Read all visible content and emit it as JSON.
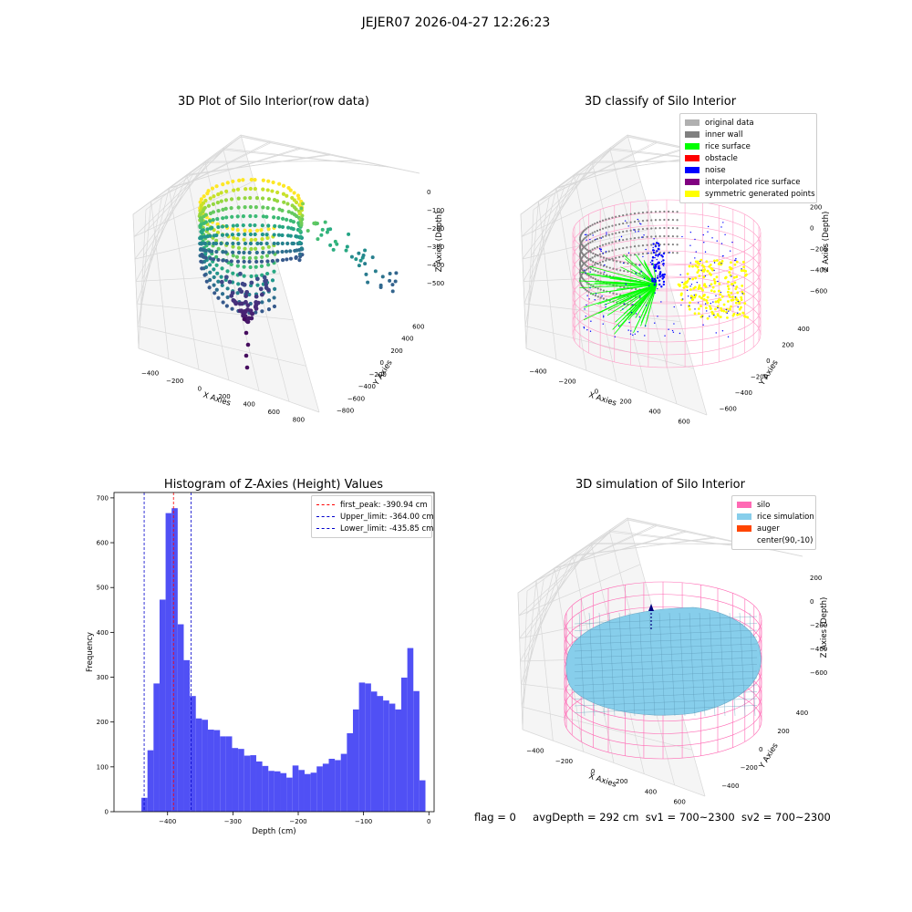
{
  "suptitle": "JEJER07 2026-04-27 12:26:23",
  "status": {
    "flag": "flag = 0",
    "avg": "avgDepth = 292 cm",
    "sv1": "sv1 = 700~2300",
    "sv2": "sv2 = 700~2300"
  },
  "colors": {
    "bar": "#5050f5",
    "peak": "#ff0000",
    "limit": "#0000cc",
    "silo": "#ff69b4",
    "rice": "#87ceeb",
    "auger": "#ff4500",
    "viridis_low": "#440154",
    "viridis_high": "#fde725",
    "green": "#00ff00",
    "yellow": "#ffff00",
    "blue": "#0000ff",
    "gray": "#808080"
  },
  "chart_data": [
    {
      "type": "scatter",
      "title": "3D Plot of Silo Interior(row data)",
      "xlabel": "X Axies",
      "ylabel": "Y Axies",
      "zlabel": "Z Axies (Depth)",
      "x_ticks": [
        "−400",
        "−200",
        "0",
        "200",
        "400",
        "600",
        "800"
      ],
      "y_ticks": [
        "−800",
        "−600",
        "−400",
        "−200",
        "0",
        "200",
        "400",
        "600"
      ],
      "z_ticks": [
        "−500",
        "−400",
        "−300",
        "−200",
        "−100",
        "0"
      ],
      "colormap": "viridis"
    },
    {
      "type": "scatter",
      "title": "3D classify of Silo Interior",
      "xlabel": "X Axies",
      "ylabel": "Y Axies",
      "zlabel": "Z Axies (Depth)",
      "x_ticks": [
        "−400",
        "−200",
        "0",
        "200",
        "400",
        "600"
      ],
      "y_ticks": [
        "−600",
        "−400",
        "−200",
        "0",
        "200",
        "400"
      ],
      "z_ticks": [
        "−600",
        "−400",
        "−200",
        "0",
        "200"
      ],
      "legend": [
        {
          "label": "original data",
          "color": "#b0b0b0"
        },
        {
          "label": "inner wall",
          "color": "#808080"
        },
        {
          "label": "rice surface",
          "color": "#00ff00"
        },
        {
          "label": "obstacle",
          "color": "#ff0000"
        },
        {
          "label": "noise",
          "color": "#0000ff"
        },
        {
          "label": "interpolated rice surface",
          "color": "#800080"
        },
        {
          "label": "symmetric generated points",
          "color": "#ffff00"
        }
      ]
    },
    {
      "type": "bar",
      "title": "Histogram of Z-Axies (Height) Values",
      "xlabel": "Depth (cm)",
      "ylabel": "Frequency",
      "xlim": [
        -482,
        8
      ],
      "ylim": [
        0,
        712
      ],
      "x_ticks": [
        -400,
        -300,
        -200,
        -100,
        0
      ],
      "x_tick_labels": [
        "−400",
        "−300",
        "−200",
        "−100",
        "0"
      ],
      "y_ticks": [
        0,
        100,
        200,
        300,
        400,
        500,
        600,
        700
      ],
      "y_tick_labels": [
        "0",
        "100",
        "200",
        "300",
        "400",
        "500",
        "600",
        "700"
      ],
      "bin_start": -440,
      "bin_width": 9.25,
      "values": [
        31,
        137,
        286,
        473,
        666,
        677,
        418,
        338,
        258,
        208,
        205,
        183,
        182,
        168,
        168,
        142,
        140,
        125,
        126,
        112,
        102,
        91,
        90,
        86,
        76,
        103,
        93,
        84,
        87,
        101,
        107,
        118,
        115,
        129,
        175,
        228,
        288,
        286,
        268,
        258,
        248,
        241,
        228,
        299,
        365,
        269,
        70
      ],
      "lines": [
        {
          "label": "first_peak: -390.94 cm",
          "x": -390.94,
          "color": "#ff0000"
        },
        {
          "label": "Upper_limit: -364.00 cm",
          "x": -364.0,
          "color": "#0000cc"
        },
        {
          "label": "Lower_limit: -435.85 cm",
          "x": -435.85,
          "color": "#0000cc"
        }
      ]
    },
    {
      "type": "surface",
      "title": "3D simulation of Silo Interior",
      "xlabel": "X Axies",
      "ylabel": "Y Axies",
      "zlabel": "Z Axies (Depth)",
      "x_ticks": [
        "−400",
        "−200",
        "0",
        "200",
        "400",
        "600"
      ],
      "y_ticks": [
        "−400",
        "−200",
        "0",
        "200",
        "400"
      ],
      "z_ticks": [
        "−600",
        "−400",
        "−200",
        "0",
        "200"
      ],
      "legend": [
        {
          "label": "silo",
          "color": "#ff69b4"
        },
        {
          "label": "rice simulation",
          "color": "#87ceeb"
        },
        {
          "label": "auger",
          "color": "#ff4500"
        },
        {
          "label": "center(90,-10)",
          "color": ""
        }
      ]
    }
  ]
}
